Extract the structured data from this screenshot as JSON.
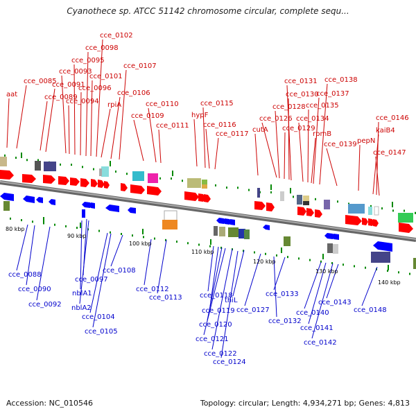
{
  "title": "Cyanothece sp. ATCC 51142 chromosome circular, complete sequ...",
  "accession": "Accession: NC_010546",
  "topology": "Topology: circular; Length: 4,934,271 bp; Genes: 4,813",
  "colors": {
    "forward_label": "#cc0000",
    "reverse_label": "#0000cc",
    "forward_gene": "#ff0000",
    "reverse_gene": "#0000ff",
    "backbone": "#888888",
    "tick": "#008800"
  },
  "kbp_labels": [
    "80 kbp",
    "90 kbp",
    "100 kbp",
    "110 kbp",
    "120 kbp",
    "130 kbp",
    "140 kbp"
  ],
  "forward_labels": [
    "aat",
    "cce_0085",
    "cce_0089",
    "cce_0091",
    "cce_0093",
    "cce_0094",
    "cce_0095",
    "cce_0096",
    "cce_0098",
    "cce_0101",
    "cce_0102",
    "rpiA",
    "cce_0106",
    "cce_0107",
    "cce_0109",
    "cce_0110",
    "cce_0111",
    "hypF",
    "cce_0115",
    "cce_0116",
    "cce_0117",
    "cutA",
    "cce_0126",
    "cce_0128",
    "cce_0129",
    "cce_0130",
    "cce_0131",
    "cce_0134",
    "cce_0135",
    "rpmB",
    "cce_0137",
    "cce_0138",
    "cce_0139",
    "pepN",
    "kaiB4",
    "cce_0146",
    "cce_0147"
  ],
  "reverse_labels": [
    "cce_0088",
    "cce_0090",
    "cce_0092",
    "cce_0097",
    "nblA1",
    "nblA2",
    "cce_0104",
    "cce_0105",
    "cce_0108",
    "cce_0112",
    "cce_0113",
    "cce_0118",
    "cce_0119",
    "cce_0120",
    "cce_0121",
    "cce_0122",
    "thiL",
    "cce_0124",
    "cce_0127",
    "cce_0132",
    "cce_0133",
    "cce_0140",
    "cce_0141",
    "cce_0142",
    "cce_0143",
    "cce_0148"
  ]
}
